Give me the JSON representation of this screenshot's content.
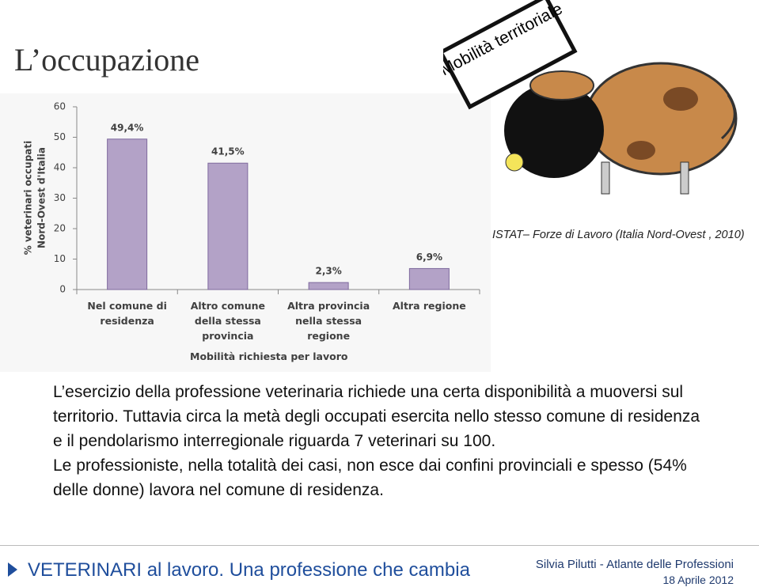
{
  "title": "L’occupazione",
  "badge": "Mobilità territoriale",
  "source": "ISTAT– Forze di Lavoro  (Italia Nord-Ovest , 2010)",
  "chart_data": {
    "type": "bar",
    "y_label": [
      "% veterinari occupati",
      "Nord-Ovest d'Italia"
    ],
    "x_label": "Mobilità richiesta per lavoro",
    "categories": [
      "Nel comune di residenza",
      "Altro comune della stessa provincia",
      "Altra provincia nella stessa regione",
      "Altra regione"
    ],
    "values": [
      49.4,
      41.5,
      2.3,
      6.9
    ],
    "value_labels": [
      "49,4%",
      "41,5%",
      "2,3%",
      "6,9%"
    ],
    "color": "#b3a2c7",
    "ylim": [
      0,
      60
    ],
    "yticks": [
      0,
      10,
      20,
      30,
      40,
      50,
      60
    ],
    "grid": false
  },
  "body": [
    "L’esercizio della professione veterinaria richiede una certa disponibilità a muoversi sul territorio. Tuttavia circa la metà degli occupati esercita nello stesso comune di residenza e il pendolarismo interregionale riguarda 7 veterinari su 100.",
    "Le professioniste, nella totalità dei casi, non esce dai confini provinciali e spesso (54% delle donne) lavora nel comune di residenza."
  ],
  "footer": {
    "left": "VETERINARI al lavoro. Una professione che cambia",
    "author": "Silvia Pilutti - Atlante delle Professioni",
    "date": "18 Aprile 2012"
  }
}
